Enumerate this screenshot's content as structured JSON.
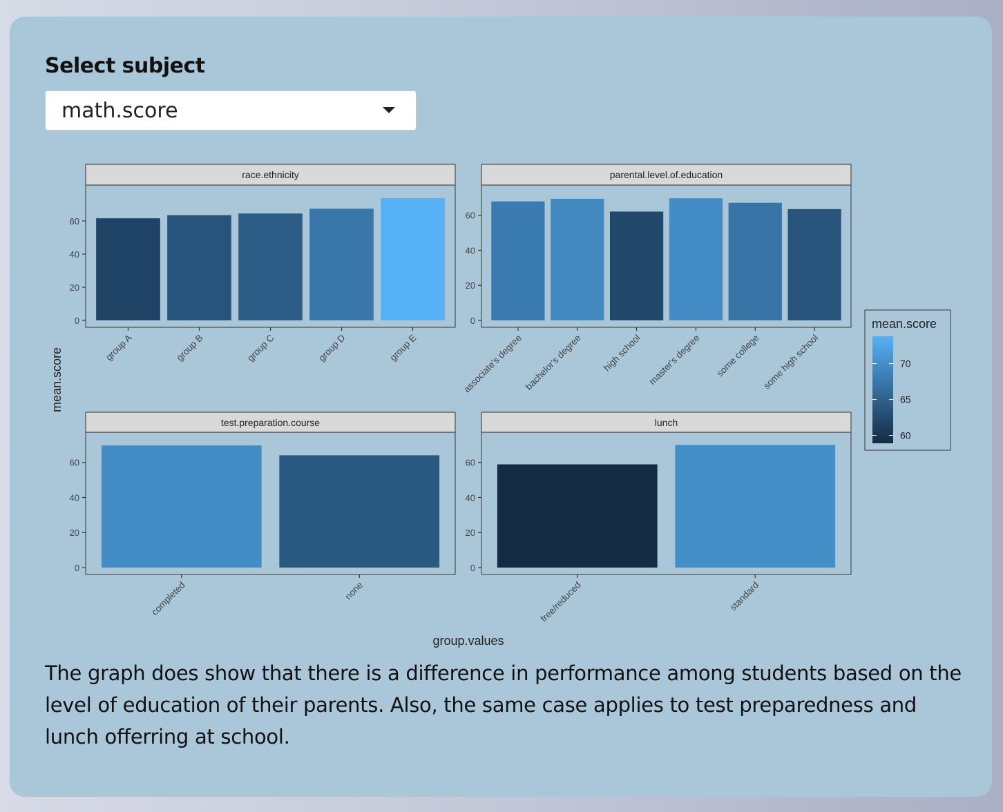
{
  "selector": {
    "label": "Select subject",
    "selected": "math.score"
  },
  "description": "The graph does show that there is a difference in performance among students based on the level of education of their parents. Also, the same case applies to test preparedness and lunch offerring at school.",
  "colors": {
    "card_background": "#a9c7d9",
    "panel_background": "#a9c7d9",
    "strip_background": "#d9d9d9",
    "fill_low": "#132b43",
    "fill_high": "#56b1f7"
  },
  "chart_data": {
    "type": "bar",
    "title": "",
    "xlabel": "group.values",
    "ylabel": "mean.score",
    "legend": {
      "title": "mean.score",
      "breaks": [
        60,
        65,
        70
      ],
      "range": [
        58.9,
        73.8
      ],
      "placement": "right"
    },
    "y_ticks": [
      0,
      20,
      40,
      60
    ],
    "facets": [
      {
        "strip": "race.ethnicity",
        "ylim": [
          0,
          77.5
        ],
        "categories": [
          "group A",
          "group B",
          "group C",
          "group D",
          "group E"
        ],
        "values": [
          61.6,
          63.5,
          64.5,
          67.4,
          73.8
        ]
      },
      {
        "strip": "parental.level.of.education",
        "ylim": [
          0,
          73.3
        ],
        "categories": [
          "associate's degree",
          "bachelor's degree",
          "high school",
          "master's degree",
          "some college",
          "some high school"
        ],
        "values": [
          67.9,
          69.4,
          62.1,
          69.7,
          67.1,
          63.5
        ]
      },
      {
        "strip": "test.preparation.course",
        "ylim": [
          0,
          73.3
        ],
        "categories": [
          "completed",
          "none"
        ],
        "values": [
          69.7,
          64.1
        ]
      },
      {
        "strip": "lunch",
        "ylim": [
          0,
          73.3
        ],
        "categories": [
          "free/reduced",
          "standard"
        ],
        "values": [
          58.9,
          70.0
        ]
      }
    ]
  }
}
